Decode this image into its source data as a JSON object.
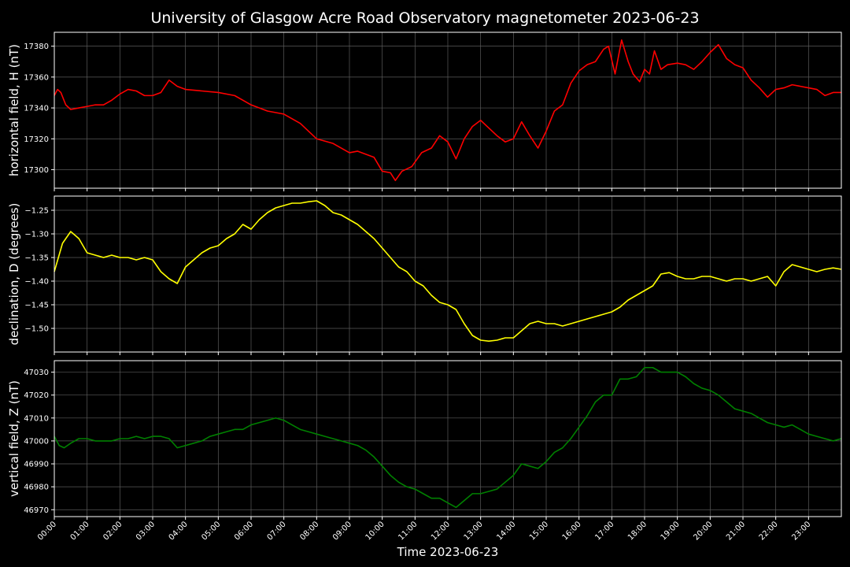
{
  "figure": {
    "title": "University of Glasgow Acre Road Observatory magnetometer 2023-06-23",
    "xlabel": "Time 2023-06-23",
    "background": "#000000",
    "grid_color": "#5a5a5a",
    "axes_color": "#ffffff"
  },
  "chart_data": [
    {
      "type": "line",
      "ylabel": "horizontal field, H (nT)",
      "color": "#ff0000",
      "grid": true,
      "xlim": [
        0,
        24
      ],
      "ylim": [
        17288,
        17389
      ],
      "yticks": [
        17300,
        17320,
        17340,
        17360,
        17380
      ],
      "ytick_labels": [
        "17300",
        "17320",
        "17340",
        "17360",
        "17380"
      ],
      "x": [
        0,
        0.1,
        0.2,
        0.35,
        0.5,
        0.75,
        1.0,
        1.25,
        1.5,
        1.75,
        2.0,
        2.25,
        2.5,
        2.75,
        3.0,
        3.25,
        3.5,
        3.75,
        4.0,
        4.5,
        5.0,
        5.5,
        6.0,
        6.5,
        7.0,
        7.5,
        8.0,
        8.5,
        9.0,
        9.25,
        9.5,
        9.75,
        10.0,
        10.25,
        10.4,
        10.6,
        10.9,
        11.2,
        11.5,
        11.75,
        12.0,
        12.25,
        12.5,
        12.75,
        13.0,
        13.25,
        13.5,
        13.75,
        14.0,
        14.25,
        14.5,
        14.75,
        15.0,
        15.25,
        15.5,
        15.75,
        16.0,
        16.25,
        16.5,
        16.75,
        16.9,
        17.1,
        17.3,
        17.5,
        17.65,
        17.85,
        18.0,
        18.15,
        18.3,
        18.5,
        18.7,
        19.0,
        19.25,
        19.5,
        19.75,
        20.0,
        20.25,
        20.5,
        20.75,
        21.0,
        21.25,
        21.5,
        21.75,
        22.0,
        22.25,
        22.5,
        22.75,
        23.0,
        23.25,
        23.5,
        23.75,
        24.0
      ],
      "y": [
        17348,
        17352,
        17350,
        17342,
        17339,
        17340,
        17341,
        17342,
        17342,
        17345,
        17349,
        17352,
        17351,
        17348,
        17348,
        17350,
        17358,
        17354,
        17352,
        17351,
        17350,
        17348,
        17342,
        17338,
        17336,
        17330,
        17320,
        17317,
        17311,
        17312,
        17310,
        17308,
        17299,
        17298,
        17293,
        17299,
        17302,
        17311,
        17314,
        17322,
        17318,
        17307,
        17320,
        17328,
        17332,
        17327,
        17322,
        17318,
        17320,
        17331,
        17322,
        17314,
        17325,
        17338,
        17342,
        17356,
        17364,
        17368,
        17370,
        17378,
        17380,
        17362,
        17384,
        17370,
        17362,
        17357,
        17365,
        17362,
        17377,
        17365,
        17368,
        17369,
        17368,
        17365,
        17370,
        17376,
        17381,
        17372,
        17368,
        17366,
        17358,
        17353,
        17347,
        17352,
        17353,
        17355,
        17354,
        17353,
        17352,
        17348,
        17350,
        17350
      ]
    },
    {
      "type": "line",
      "ylabel": "declination, D (degrees)",
      "color": "#ffff00",
      "grid": true,
      "xlim": [
        0,
        24
      ],
      "ylim": [
        -1.55,
        -1.22
      ],
      "yticks": [
        -1.5,
        -1.45,
        -1.4,
        -1.35,
        -1.3,
        -1.25
      ],
      "ytick_labels": [
        "−1.50",
        "−1.45",
        "−1.40",
        "−1.35",
        "−1.30",
        "−1.25"
      ],
      "x": [
        0,
        0.25,
        0.5,
        0.75,
        1.0,
        1.25,
        1.5,
        1.75,
        2.0,
        2.25,
        2.5,
        2.75,
        3.0,
        3.25,
        3.5,
        3.75,
        4.0,
        4.25,
        4.5,
        4.75,
        5.0,
        5.25,
        5.5,
        5.75,
        6.0,
        6.25,
        6.5,
        6.75,
        7.0,
        7.25,
        7.5,
        7.75,
        8.0,
        8.25,
        8.5,
        8.75,
        9.0,
        9.25,
        9.5,
        9.75,
        10.0,
        10.25,
        10.5,
        10.75,
        11.0,
        11.25,
        11.5,
        11.75,
        12.0,
        12.25,
        12.5,
        12.75,
        13.0,
        13.25,
        13.5,
        13.75,
        14.0,
        14.25,
        14.5,
        14.75,
        15.0,
        15.25,
        15.5,
        15.75,
        16.0,
        16.25,
        16.5,
        16.75,
        17.0,
        17.25,
        17.5,
        17.75,
        18.0,
        18.25,
        18.5,
        18.75,
        19.0,
        19.25,
        19.5,
        19.75,
        20.0,
        20.25,
        20.5,
        20.75,
        21.0,
        21.25,
        21.5,
        21.75,
        22.0,
        22.25,
        22.5,
        22.75,
        23.0,
        23.25,
        23.5,
        23.75,
        24.0
      ],
      "y": [
        -1.38,
        -1.32,
        -1.295,
        -1.31,
        -1.34,
        -1.345,
        -1.35,
        -1.345,
        -1.35,
        -1.35,
        -1.355,
        -1.35,
        -1.355,
        -1.38,
        -1.395,
        -1.405,
        -1.37,
        -1.355,
        -1.34,
        -1.33,
        -1.325,
        -1.31,
        -1.3,
        -1.28,
        -1.29,
        -1.27,
        -1.255,
        -1.245,
        -1.24,
        -1.235,
        -1.235,
        -1.232,
        -1.23,
        -1.24,
        -1.255,
        -1.26,
        -1.27,
        -1.28,
        -1.295,
        -1.31,
        -1.33,
        -1.35,
        -1.37,
        -1.38,
        -1.4,
        -1.41,
        -1.43,
        -1.445,
        -1.45,
        -1.46,
        -1.49,
        -1.515,
        -1.525,
        -1.527,
        -1.525,
        -1.52,
        -1.52,
        -1.505,
        -1.49,
        -1.485,
        -1.49,
        -1.49,
        -1.495,
        -1.49,
        -1.485,
        -1.48,
        -1.475,
        -1.47,
        -1.465,
        -1.455,
        -1.44,
        -1.43,
        -1.42,
        -1.41,
        -1.385,
        -1.382,
        -1.39,
        -1.395,
        -1.395,
        -1.39,
        -1.39,
        -1.395,
        -1.4,
        -1.395,
        -1.395,
        -1.4,
        -1.395,
        -1.39,
        -1.41,
        -1.38,
        -1.365,
        -1.37,
        -1.375,
        -1.38,
        -1.375,
        -1.372,
        -1.375
      ]
    },
    {
      "type": "line",
      "ylabel": "vertical field, Z (nT)",
      "color": "#008000",
      "grid": true,
      "xlim": [
        0,
        24
      ],
      "ylim": [
        46967,
        47035
      ],
      "yticks": [
        46970,
        46980,
        46990,
        47000,
        47010,
        47020,
        47030
      ],
      "ytick_labels": [
        "46970",
        "46980",
        "46990",
        "47000",
        "47010",
        "47020",
        "47030"
      ],
      "x": [
        0,
        0.15,
        0.3,
        0.5,
        0.75,
        1.0,
        1.25,
        1.5,
        1.75,
        2.0,
        2.25,
        2.5,
        2.75,
        3.0,
        3.25,
        3.5,
        3.75,
        4.0,
        4.25,
        4.5,
        4.75,
        5.0,
        5.25,
        5.5,
        5.75,
        6.0,
        6.25,
        6.5,
        6.75,
        7.0,
        7.25,
        7.5,
        7.75,
        8.0,
        8.25,
        8.5,
        8.75,
        9.0,
        9.25,
        9.5,
        9.75,
        10.0,
        10.25,
        10.5,
        10.75,
        11.0,
        11.25,
        11.5,
        11.75,
        12.0,
        12.25,
        12.5,
        12.75,
        13.0,
        13.25,
        13.5,
        13.75,
        14.0,
        14.25,
        14.5,
        14.75,
        15.0,
        15.25,
        15.5,
        15.75,
        16.0,
        16.25,
        16.5,
        16.75,
        17.0,
        17.25,
        17.5,
        17.75,
        18.0,
        18.25,
        18.5,
        18.75,
        19.0,
        19.25,
        19.5,
        19.75,
        20.0,
        20.25,
        20.5,
        20.75,
        21.0,
        21.25,
        21.5,
        21.75,
        22.0,
        22.25,
        22.5,
        22.75,
        23.0,
        23.25,
        23.5,
        23.75,
        24.0
      ],
      "y": [
        47002,
        46998,
        46997,
        46999,
        47001,
        47001,
        47000,
        47000,
        47000,
        47001,
        47001,
        47002,
        47001,
        47002,
        47002,
        47001,
        46997,
        46998,
        46999,
        47000,
        47002,
        47003,
        47004,
        47005,
        47005,
        47007,
        47008,
        47009,
        47010,
        47009,
        47007,
        47005,
        47004,
        47003,
        47002,
        47001,
        47000,
        46999,
        46998,
        46996,
        46993,
        46989,
        46985,
        46982,
        46980,
        46979,
        46977,
        46975,
        46975,
        46973,
        46971,
        46974,
        46977,
        46977,
        46978,
        46979,
        46982,
        46985,
        46990,
        46989,
        46988,
        46991,
        46995,
        46997,
        47001,
        47006,
        47011,
        47017,
        47020,
        47020,
        47027,
        47027,
        47028,
        47032,
        47032,
        47030,
        47030,
        47030,
        47028,
        47025,
        47023,
        47022,
        47020,
        47017,
        47014,
        47013,
        47012,
        47010,
        47008,
        47007,
        47006,
        47007,
        47005,
        47003,
        47002,
        47001,
        47000,
        47001
      ]
    }
  ],
  "x_axis": {
    "ticks": [
      0,
      1,
      2,
      3,
      4,
      5,
      6,
      7,
      8,
      9,
      10,
      11,
      12,
      13,
      14,
      15,
      16,
      17,
      18,
      19,
      20,
      21,
      22,
      23
    ],
    "tick_labels": [
      "00:00",
      "01:00",
      "02:00",
      "03:00",
      "04:00",
      "05:00",
      "06:00",
      "07:00",
      "08:00",
      "09:00",
      "10:00",
      "11:00",
      "12:00",
      "13:00",
      "14:00",
      "15:00",
      "16:00",
      "17:00",
      "18:00",
      "19:00",
      "20:00",
      "21:00",
      "22:00",
      "23:00"
    ]
  }
}
